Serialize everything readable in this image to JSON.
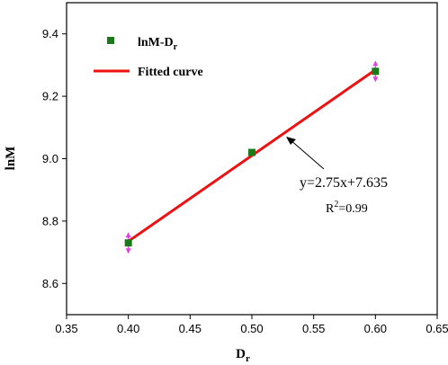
{
  "chart_data": {
    "type": "scatter",
    "xlabel": "D",
    "xlabel_sub": "r",
    "ylabel": "lnM",
    "xlim": [
      0.35,
      0.65
    ],
    "ylim": [
      8.5,
      9.5
    ],
    "x_ticks": [
      "0.35",
      "0.40",
      "0.45",
      "0.50",
      "0.55",
      "0.60",
      "0.65"
    ],
    "y_ticks": [
      "8.6",
      "8.8",
      "9.0",
      "9.2",
      "9.4"
    ],
    "grid": false,
    "legend_position": "top-left",
    "series": [
      {
        "name": "lnM-D",
        "name_sub": "r",
        "kind": "scatter",
        "marker": "square",
        "color": "#1a7a1a",
        "x": [
          0.4,
          0.5,
          0.6
        ],
        "y": [
          8.73,
          9.02,
          9.28
        ]
      },
      {
        "name": "Fitted curve",
        "kind": "line",
        "color": "#ee1111",
        "x": [
          0.4,
          0.6
        ],
        "y": [
          8.735,
          9.285
        ]
      }
    ],
    "error_bar_color": "#e040e0",
    "annotation": {
      "equation": "y=2.75x+7.635",
      "r2_prefix": "R",
      "r2_sup": "2",
      "r2_value": "=0.99",
      "arrow_color": "#000000"
    }
  }
}
